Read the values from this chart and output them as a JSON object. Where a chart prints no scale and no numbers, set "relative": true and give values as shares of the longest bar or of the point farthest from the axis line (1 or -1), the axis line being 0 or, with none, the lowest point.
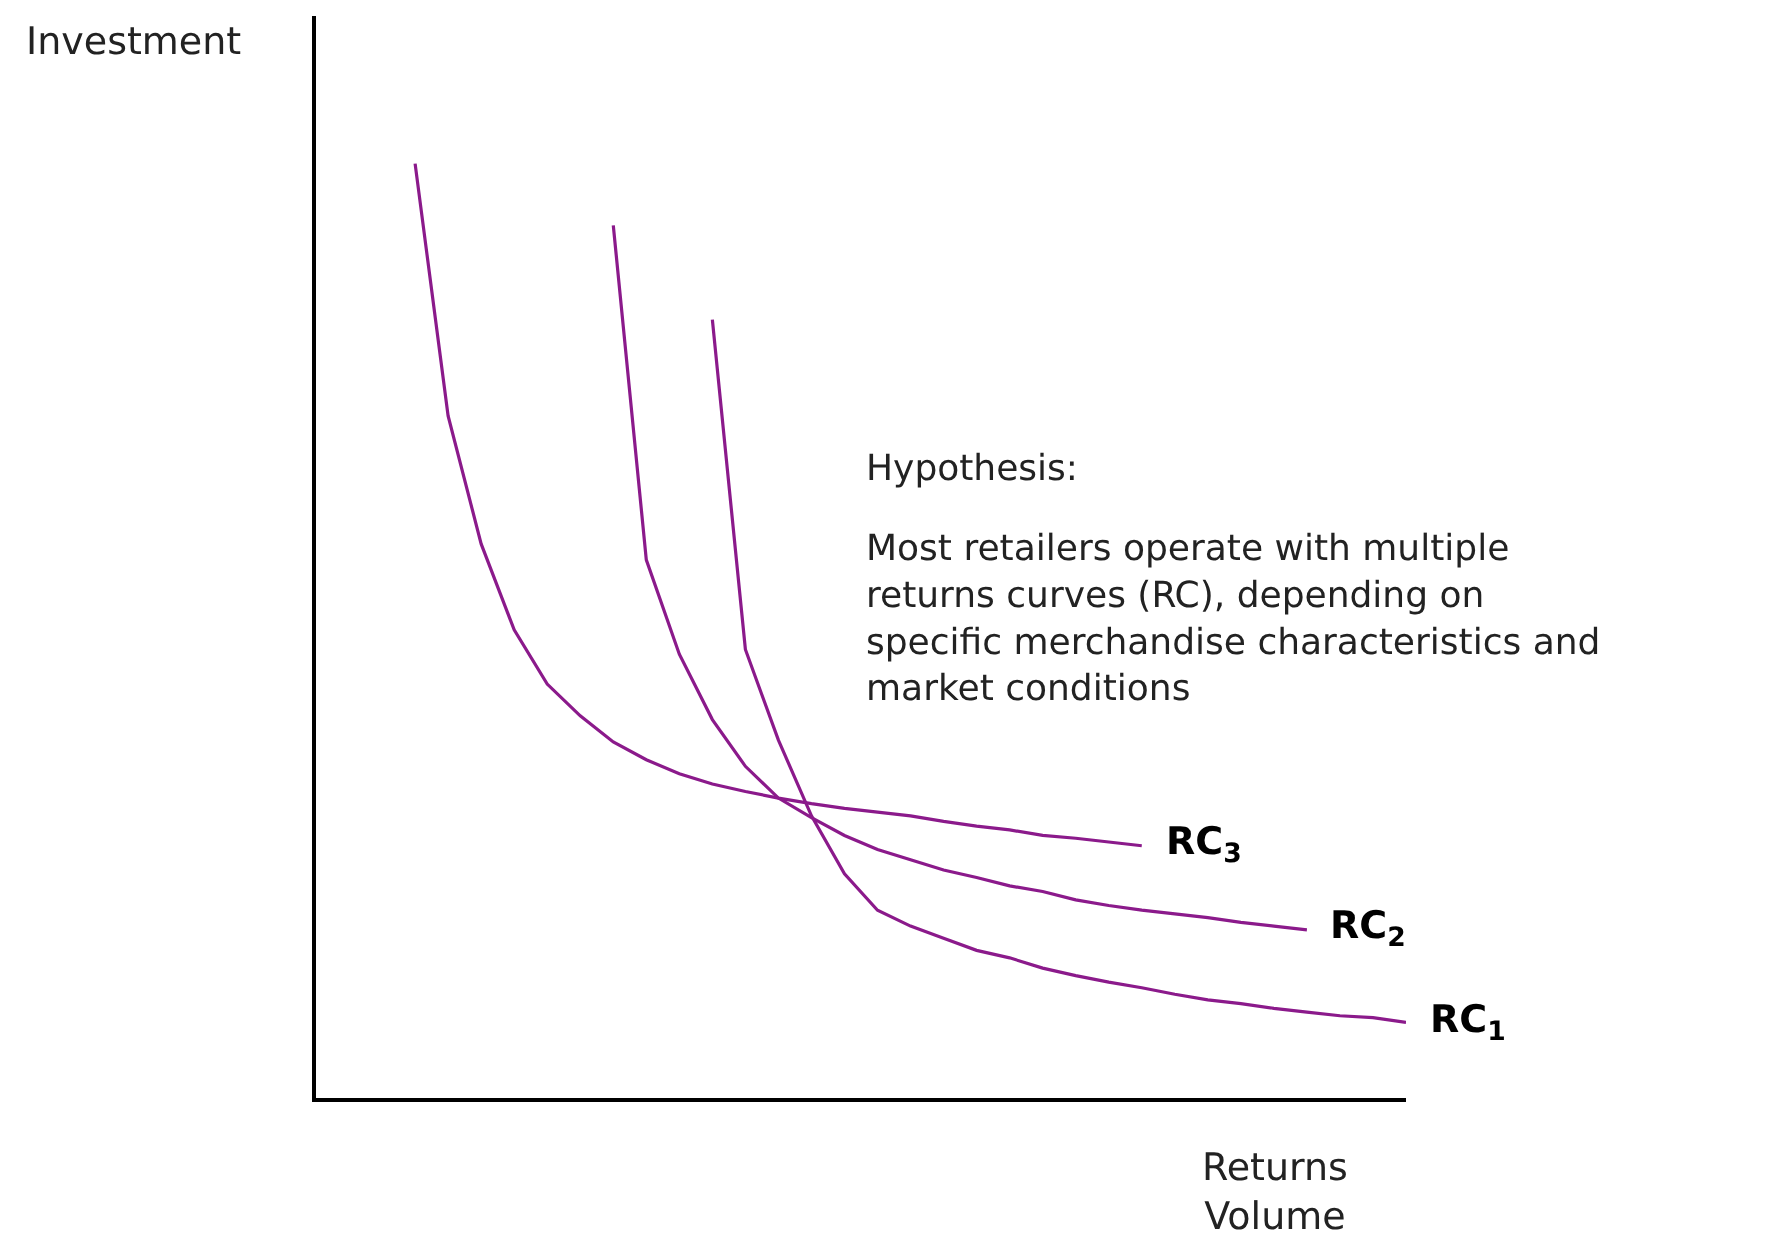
{
  "chart_data": {
    "type": "line",
    "relative": true,
    "xlabel": "Returns\nVolume",
    "ylabel": "Investment",
    "legend": false,
    "marker": "none",
    "line_style": "solid",
    "categories": [
      null,
      null,
      null,
      null,
      null,
      null,
      null,
      null,
      null,
      null,
      null,
      null,
      null,
      null,
      null,
      null,
      null,
      null,
      null,
      null,
      null,
      null,
      null,
      null,
      null,
      null,
      null,
      null,
      null,
      null,
      null,
      null,
      null,
      null
    ],
    "annotations": [
      "Hypothesis:",
      "Most retailers operate with multiple\nreturns curves (RC), depending on\nspecific merchandise characteristics and\nmarket conditions"
    ],
    "series": [
      {
        "name": "RC$_{3}$",
        "color": "#8b1a8b",
        "values": [
          null,
          null,
          null,
          1.0,
          0.73,
          0.593,
          0.501,
          0.443,
          0.409,
          0.381,
          0.362,
          0.347,
          0.336,
          0.328,
          0.321,
          0.315,
          0.31,
          0.306,
          0.302,
          0.296,
          0.291,
          0.287,
          0.281,
          0.278,
          0.274,
          0.27,
          null,
          null,
          null,
          null,
          null,
          null,
          null,
          null
        ]
      },
      {
        "name": "RC$_{2}$",
        "color": "#8b1a8b",
        "values": [
          null,
          null,
          null,
          null,
          null,
          null,
          null,
          null,
          null,
          0.934,
          0.576,
          0.475,
          0.405,
          0.355,
          0.321,
          0.3,
          0.281,
          0.266,
          0.255,
          0.244,
          0.236,
          0.227,
          0.221,
          0.212,
          0.206,
          0.201,
          0.197,
          0.193,
          0.188,
          0.184,
          0.18,
          null,
          null,
          null
        ]
      },
      {
        "name": "RC$_{1}$",
        "color": "#8b1a8b",
        "values": [
          null,
          null,
          null,
          null,
          null,
          null,
          null,
          null,
          null,
          null,
          null,
          null,
          0.833,
          0.48,
          0.383,
          0.302,
          0.24,
          0.201,
          0.184,
          0.171,
          0.158,
          0.15,
          0.139,
          0.131,
          0.124,
          0.118,
          0.111,
          0.105,
          0.101,
          0.096,
          0.092,
          0.088,
          0.086,
          0.081
        ]
      }
    ]
  }
}
